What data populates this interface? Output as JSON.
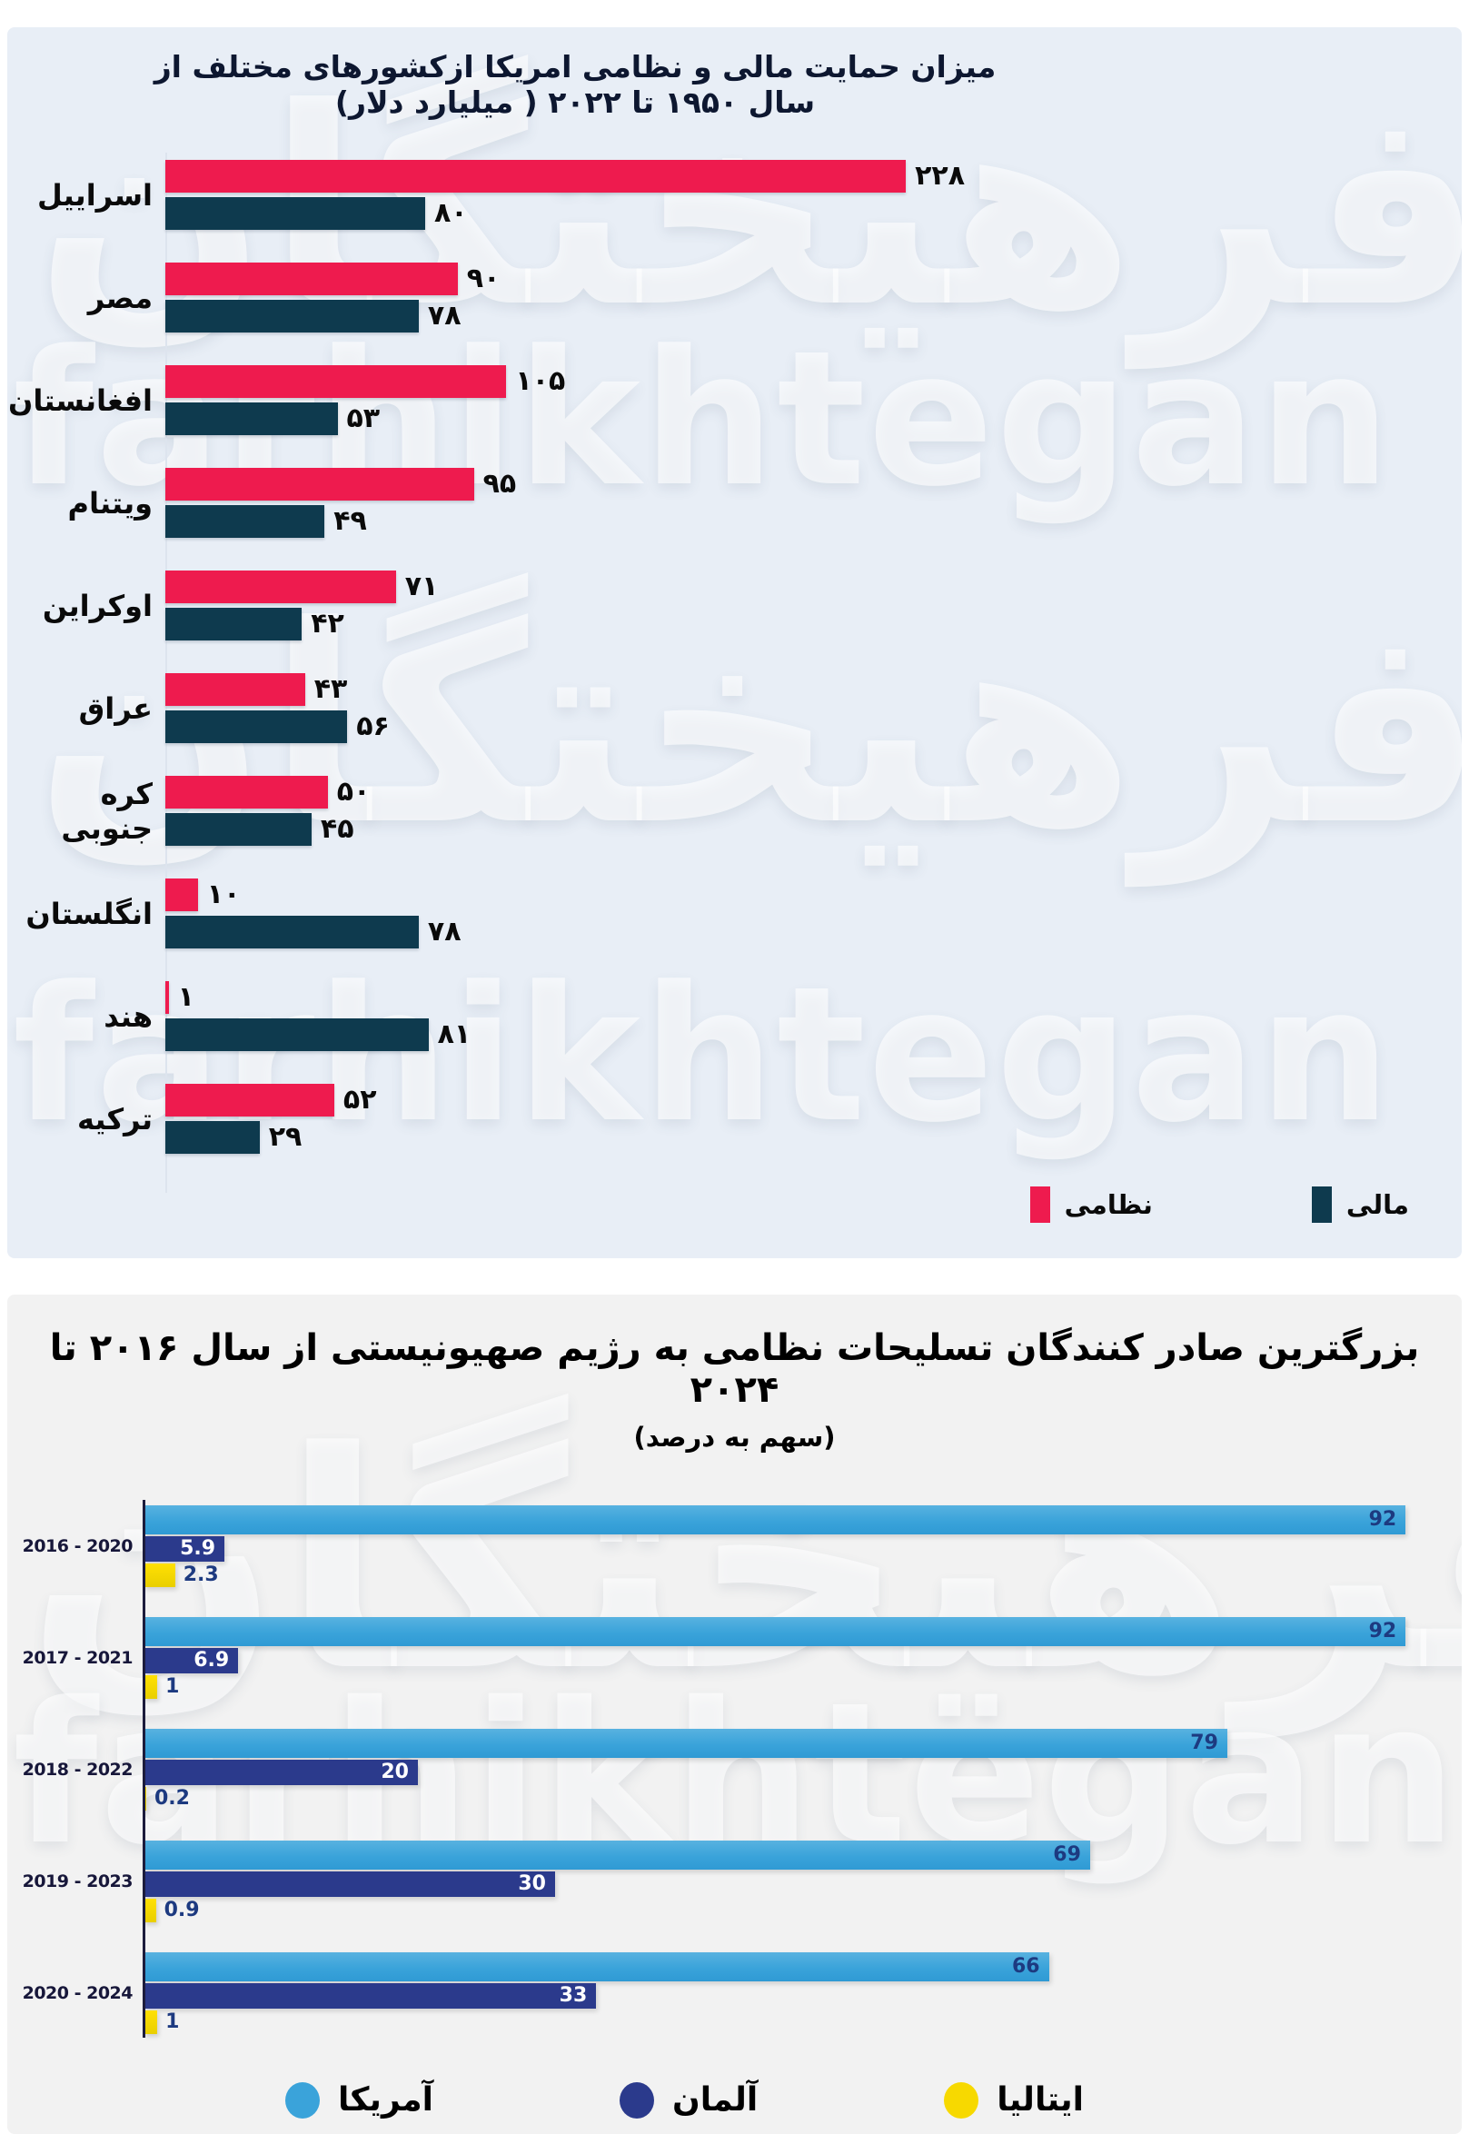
{
  "watermark": {
    "persian": "فرهیختگان",
    "latin": "farhikhtegan"
  },
  "chart_data": [
    {
      "type": "bar",
      "orientation": "horizontal",
      "title": "میزان حمایت مالی  و نظامی امریکا  ازکشورهای مختلف از سال ۱۹۵۰ تا ۲۰۲۲ ( میلیارد دلار)",
      "unit": "میلیارد دلار",
      "xlim": [
        0,
        230
      ],
      "grid": false,
      "legend_position": "bottom-right",
      "categories": [
        "اسراییل",
        "مصر",
        "افغانستان",
        "ویتنام",
        "اوکراین",
        "عراق",
        "کره جنوبی",
        "انگلستان",
        "هند",
        "ترکیه"
      ],
      "series": [
        {
          "name": "نظامی",
          "color": "#ee1b4e",
          "values": [
            228,
            90,
            105,
            95,
            71,
            43,
            50,
            10,
            1,
            52
          ],
          "labels": [
            "۲۲۸",
            "۹۰",
            "۱۰۵",
            "۹۵",
            "۷۱",
            "۴۳",
            "۵۰",
            "۱۰",
            "۱",
            "۵۲"
          ]
        },
        {
          "name": "مالی",
          "color": "#0e3a4e",
          "values": [
            80,
            78,
            53,
            49,
            42,
            56,
            45,
            78,
            81,
            29
          ],
          "labels": [
            "۸۰",
            "۷۸",
            "۵۳",
            "۴۹",
            "۴۲",
            "۵۶",
            "۴۵",
            "۷۸",
            "۸۱",
            "۲۹"
          ]
        }
      ]
    },
    {
      "type": "bar",
      "orientation": "horizontal",
      "title": "بزرگترین صادر کنندگان تسلیحات نظامی به رژیم صهیونیستی از سال ۲۰۱۶ تا ۲۰۲۴",
      "subtitle": "(سهم به درصد)",
      "unit": "درصد",
      "xlim": [
        0,
        100
      ],
      "grid": false,
      "legend_position": "bottom-center",
      "categories": [
        "2016 - 2020",
        "2017 - 2021",
        "2018 - 2022",
        "2019 - 2023",
        "2020 - 2024"
      ],
      "series": [
        {
          "name": "آمریکا",
          "color": "#3aa3da",
          "values": [
            92,
            92,
            79,
            69,
            66
          ],
          "labels": [
            "92",
            "92",
            "79",
            "69",
            "66"
          ]
        },
        {
          "name": "آلمان",
          "color": "#2b3a8c",
          "values": [
            5.9,
            6.9,
            20,
            30,
            33
          ],
          "labels": [
            "5.9",
            "6.9",
            "20",
            "30",
            "33"
          ]
        },
        {
          "name": "ایتالیا",
          "color": "#f7d900",
          "values": [
            2.3,
            1,
            0.2,
            0.9,
            1
          ],
          "labels": [
            "2.3",
            "1",
            "0.2",
            "0.9",
            "1"
          ]
        }
      ]
    }
  ]
}
